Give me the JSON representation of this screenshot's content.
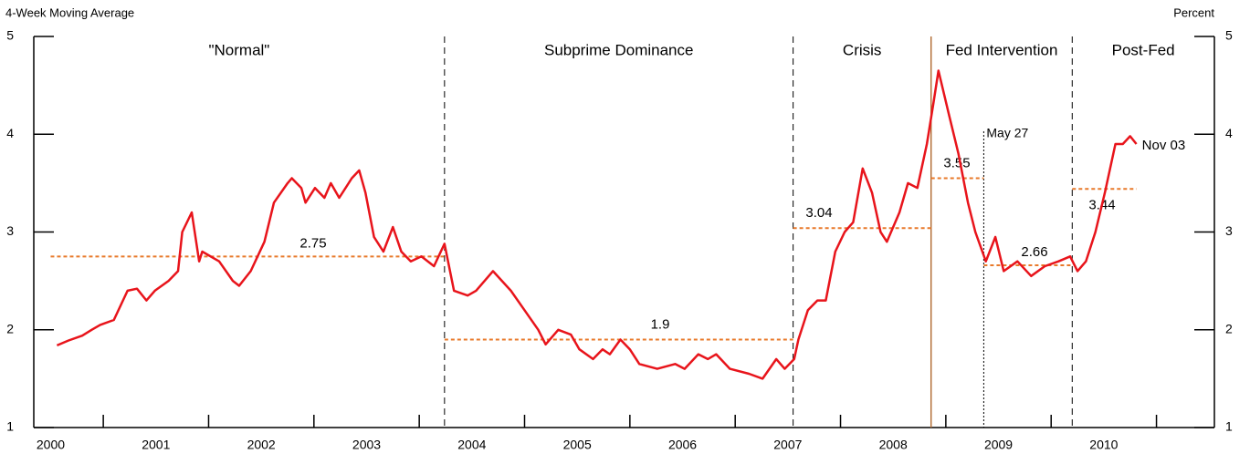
{
  "chart_data": {
    "type": "line",
    "y_axis_left_title": "4-Week Moving Average",
    "y_axis_right_title": "Percent",
    "x": [
      2000.56,
      2000.67,
      2000.8,
      2000.89,
      2000.97,
      2001.1,
      2001.23,
      2001.32,
      2001.41,
      2001.49,
      2001.62,
      2001.71,
      2001.75,
      2001.84,
      2001.91,
      2001.94,
      2002.1,
      2002.23,
      2002.29,
      2002.4,
      2002.53,
      2002.62,
      2002.75,
      2002.79,
      2002.88,
      2002.92,
      2003.01,
      2003.1,
      2003.16,
      2003.24,
      2003.36,
      2003.43,
      2003.49,
      2003.57,
      2003.66,
      2003.75,
      2003.83,
      2003.92,
      2004.02,
      2004.14,
      2004.24,
      2004.33,
      2004.46,
      2004.54,
      2004.7,
      2004.87,
      2005.0,
      2005.13,
      2005.2,
      2005.32,
      2005.44,
      2005.52,
      2005.65,
      2005.74,
      2005.81,
      2005.91,
      2006.0,
      2006.09,
      2006.26,
      2006.43,
      2006.52,
      2006.65,
      2006.74,
      2006.82,
      2006.95,
      2007.13,
      2007.26,
      2007.39,
      2007.47,
      2007.56,
      2007.6,
      2007.69,
      2007.78,
      2007.86,
      2007.95,
      2008.04,
      2008.12,
      2008.21,
      2008.3,
      2008.38,
      2008.44,
      2008.56,
      2008.64,
      2008.73,
      2008.82,
      2008.88,
      2008.93,
      2009.03,
      2009.12,
      2009.21,
      2009.28,
      2009.38,
      2009.47,
      2009.55,
      2009.68,
      2009.81,
      2009.94,
      2010.07,
      2010.18,
      2010.25,
      2010.33,
      2010.42,
      2010.51,
      2010.61,
      2010.68,
      2010.75,
      2010.81
    ],
    "series": [
      {
        "color": "#e8141b",
        "values": [
          1.84,
          1.89,
          1.94,
          2.0,
          2.05,
          2.1,
          2.4,
          2.42,
          2.3,
          2.4,
          2.5,
          2.6,
          3.0,
          3.2,
          2.7,
          2.8,
          2.7,
          2.5,
          2.45,
          2.6,
          2.9,
          3.3,
          3.5,
          3.55,
          3.45,
          3.3,
          3.45,
          3.35,
          3.5,
          3.35,
          3.55,
          3.63,
          3.4,
          2.95,
          2.8,
          3.05,
          2.8,
          2.7,
          2.75,
          2.65,
          2.88,
          2.4,
          2.35,
          2.4,
          2.6,
          2.4,
          2.2,
          2.0,
          1.85,
          2.0,
          1.95,
          1.8,
          1.7,
          1.8,
          1.75,
          1.9,
          1.8,
          1.65,
          1.6,
          1.65,
          1.6,
          1.75,
          1.7,
          1.75,
          1.6,
          1.55,
          1.5,
          1.7,
          1.6,
          1.7,
          1.9,
          2.2,
          2.3,
          2.3,
          2.8,
          3.0,
          3.1,
          3.65,
          3.4,
          3.0,
          2.9,
          3.2,
          3.5,
          3.45,
          3.9,
          4.3,
          4.65,
          4.2,
          3.8,
          3.3,
          3.0,
          2.7,
          2.95,
          2.6,
          2.7,
          2.55,
          2.65,
          2.7,
          2.75,
          2.6,
          2.7,
          3.0,
          3.4,
          3.9,
          3.9,
          3.98,
          3.9
        ]
      }
    ],
    "xlim": [
      2000.34,
      2011.55
    ],
    "xticks": [
      2001,
      2002,
      2003,
      2004,
      2005,
      2006,
      2007,
      2008,
      2009,
      2010,
      2011
    ],
    "x_labels": [
      "2000",
      "2001",
      "2002",
      "2003",
      "2004",
      "2005",
      "2006",
      "2007",
      "2008",
      "2009",
      "2010"
    ],
    "ylim": [
      1,
      5
    ],
    "yticks": [
      1,
      2,
      3,
      4,
      5
    ],
    "y2lim": [
      1,
      5
    ],
    "y2ticks": [
      1,
      2,
      3,
      4,
      5
    ],
    "periods": [
      "\"Normal\"",
      "Subprime Dominance",
      "Crisis",
      "Fed Intervention",
      "Post-Fed"
    ],
    "boundaries": [
      {
        "x": 2004.24,
        "style": "dashed",
        "color": "#000000"
      },
      {
        "x": 2007.55,
        "style": "dashed",
        "color": "#000000"
      },
      {
        "x": 2008.86,
        "style": "solid",
        "color": "#b5713a"
      },
      {
        "x": 2010.2,
        "style": "dashed",
        "color": "#000000"
      }
    ],
    "averages": [
      {
        "value": 2.75,
        "start": 2000.5,
        "end": 2004.24
      },
      {
        "value": 1.9,
        "start": 2004.24,
        "end": 2007.55
      },
      {
        "value": 3.04,
        "start": 2007.55,
        "end": 2008.86
      },
      {
        "value": 3.55,
        "start": 2008.86,
        "end": 2009.36
      },
      {
        "value": 2.66,
        "start": 2009.36,
        "end": 2010.2
      },
      {
        "value": 3.44,
        "start": 2010.2,
        "end": 2010.81
      }
    ],
    "average_color": "#e8792a",
    "marker": {
      "x": 2009.36,
      "label": "May 27"
    },
    "end_label": "Nov 03"
  }
}
